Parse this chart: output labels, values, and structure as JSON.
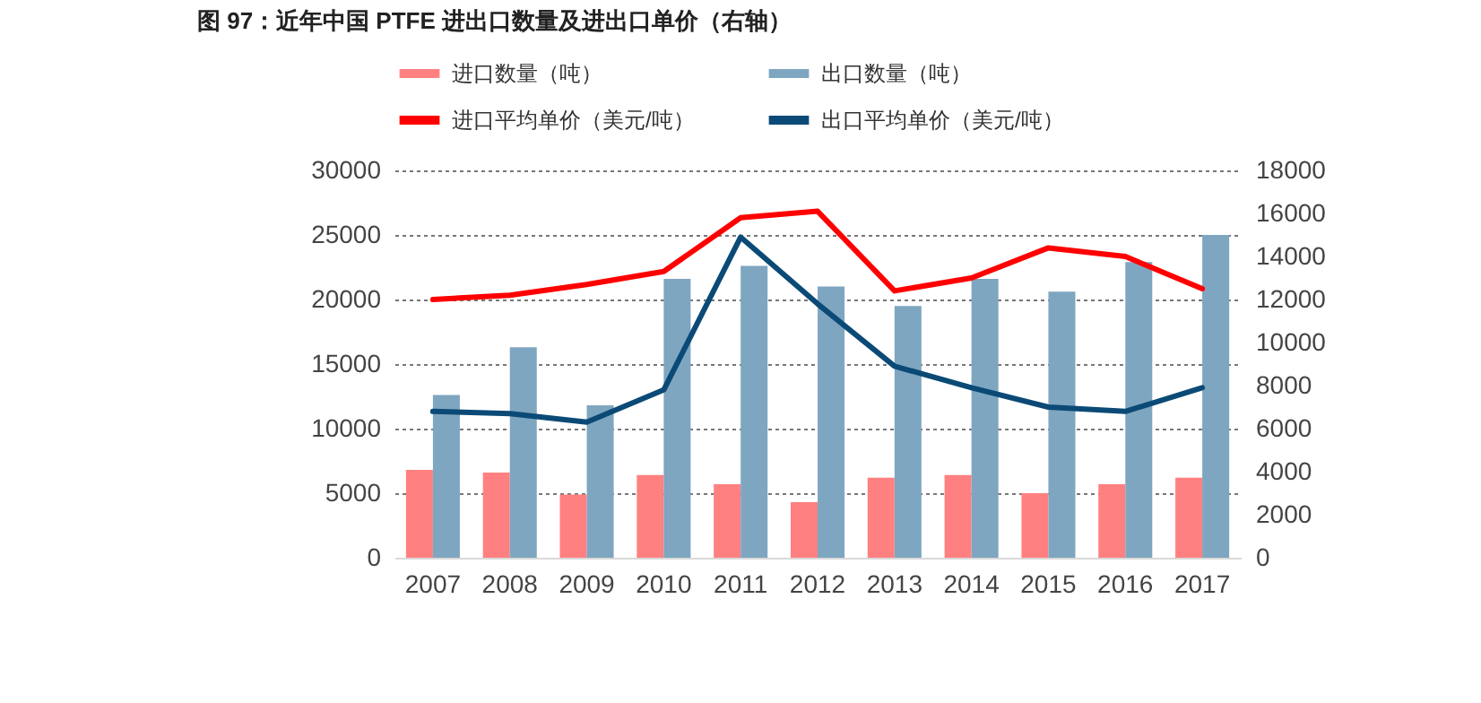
{
  "chart_data": {
    "type": "bar",
    "title": "图 97：近年中国 PTFE 进出口数量及进出口单价（右轴）",
    "categories": [
      "2007",
      "2008",
      "2009",
      "2010",
      "2011",
      "2012",
      "2013",
      "2014",
      "2015",
      "2016",
      "2017"
    ],
    "series": [
      {
        "name": "进口数量（吨）",
        "color": "#ff8080",
        "values": [
          6800,
          6600,
          4900,
          6400,
          5700,
          4300,
          6200,
          6400,
          5000,
          5700,
          6200
        ]
      },
      {
        "name": "出口数量（吨）",
        "color": "#7fa6c0",
        "values": [
          12600,
          16300,
          11800,
          21600,
          22600,
          21000,
          19500,
          21600,
          20600,
          22900,
          25000
        ]
      },
      {
        "name": "进口平均单价（美元/吨）",
        "type": "line",
        "axis": "y2",
        "color": "#ff0000",
        "values": [
          12000,
          12200,
          12700,
          13300,
          15800,
          16100,
          12400,
          13000,
          14400,
          14000,
          12500
        ]
      },
      {
        "name": "出口平均单价（美元/吨）",
        "type": "line",
        "axis": "y2",
        "color": "#0b4a76",
        "values": [
          6800,
          6700,
          6300,
          7800,
          14900,
          11800,
          8900,
          7900,
          7000,
          6800,
          7900
        ]
      }
    ],
    "ylim": [
      0,
      30000
    ],
    "yticks": [
      0,
      5000,
      10000,
      15000,
      20000,
      25000,
      30000
    ],
    "y2lim": [
      0,
      18000
    ],
    "y2ticks": [
      0,
      2000,
      4000,
      6000,
      8000,
      10000,
      12000,
      14000,
      16000,
      18000
    ],
    "grid": "y",
    "legend": "top"
  }
}
